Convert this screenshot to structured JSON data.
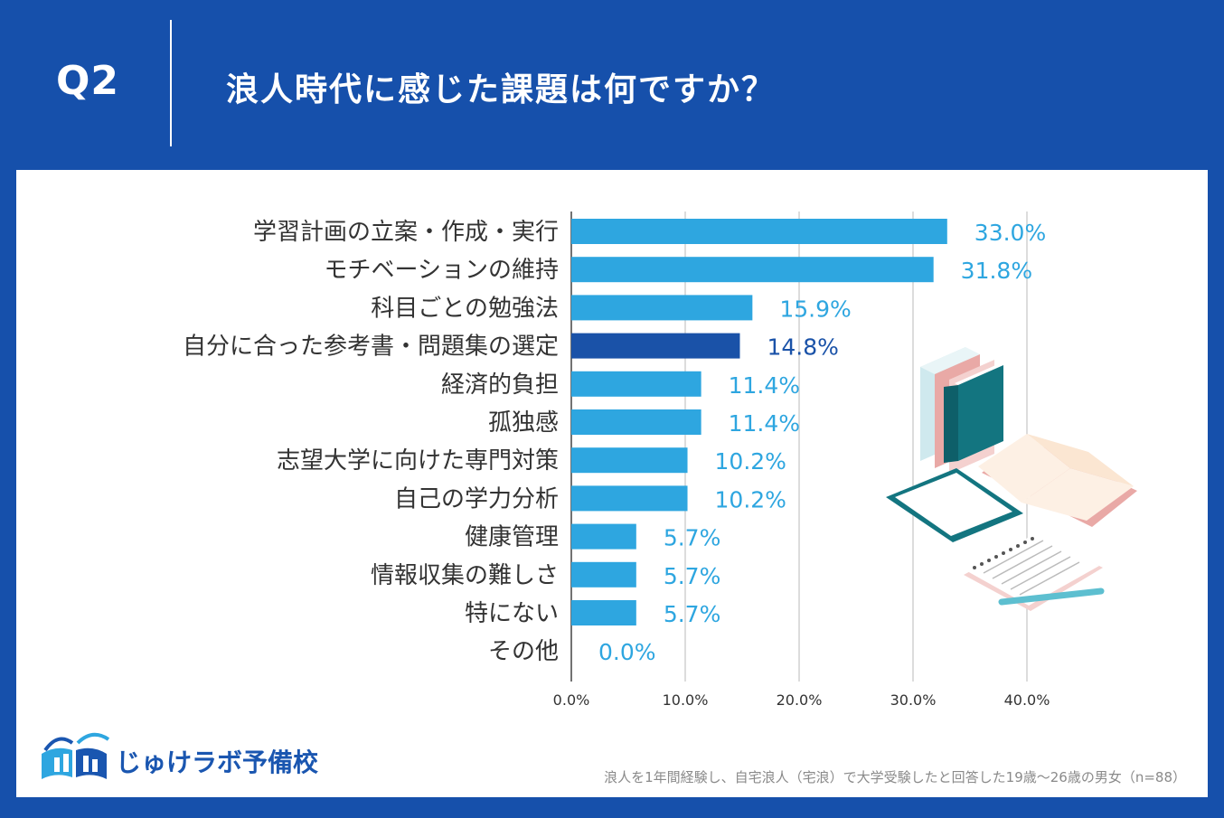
{
  "header": {
    "question_label": "Q2",
    "question_title": "浪人時代に感じた課題は何ですか？"
  },
  "footer": {
    "brand": "じゅけラボ予備校",
    "note": "浪人を1年間経験し、自宅浪人（宅浪）で大学受験したと回答した19歳～26歳の男女（n=88）"
  },
  "colors": {
    "background": "#1650ab",
    "bar": "#2ea6e0",
    "bar_highlight": "#1a52a8",
    "label_default": "#2ea6e0",
    "label_highlight": "#1a52a8",
    "grid": "#d0d0d0"
  },
  "chart_data": {
    "type": "bar",
    "orientation": "horizontal",
    "categories": [
      "学習計画の立案・作成・実行",
      "モチベーションの維持",
      "科目ごとの勉強法",
      "自分に合った参考書・問題集の選定",
      "経済的負担",
      "孤独感",
      "志望大学に向けた専門対策",
      "自己の学力分析",
      "健康管理",
      "情報収集の難しさ",
      "特にない",
      "その他"
    ],
    "values": [
      33.0,
      31.8,
      15.9,
      14.8,
      11.4,
      11.4,
      10.2,
      10.2,
      5.7,
      5.7,
      5.7,
      0.0
    ],
    "value_labels": [
      "33.0%",
      "31.8%",
      "15.9%",
      "14.8%",
      "11.4%",
      "11.4%",
      "10.2%",
      "10.2%",
      "5.7%",
      "5.7%",
      "5.7%",
      "0.0%"
    ],
    "highlight_index": 3,
    "xlim": [
      0,
      40
    ],
    "xticks": [
      0,
      10,
      20,
      30,
      40
    ],
    "xtick_labels": [
      "0.0%",
      "10.0%",
      "20.0%",
      "30.0%",
      "40.0%"
    ],
    "grid": true
  }
}
